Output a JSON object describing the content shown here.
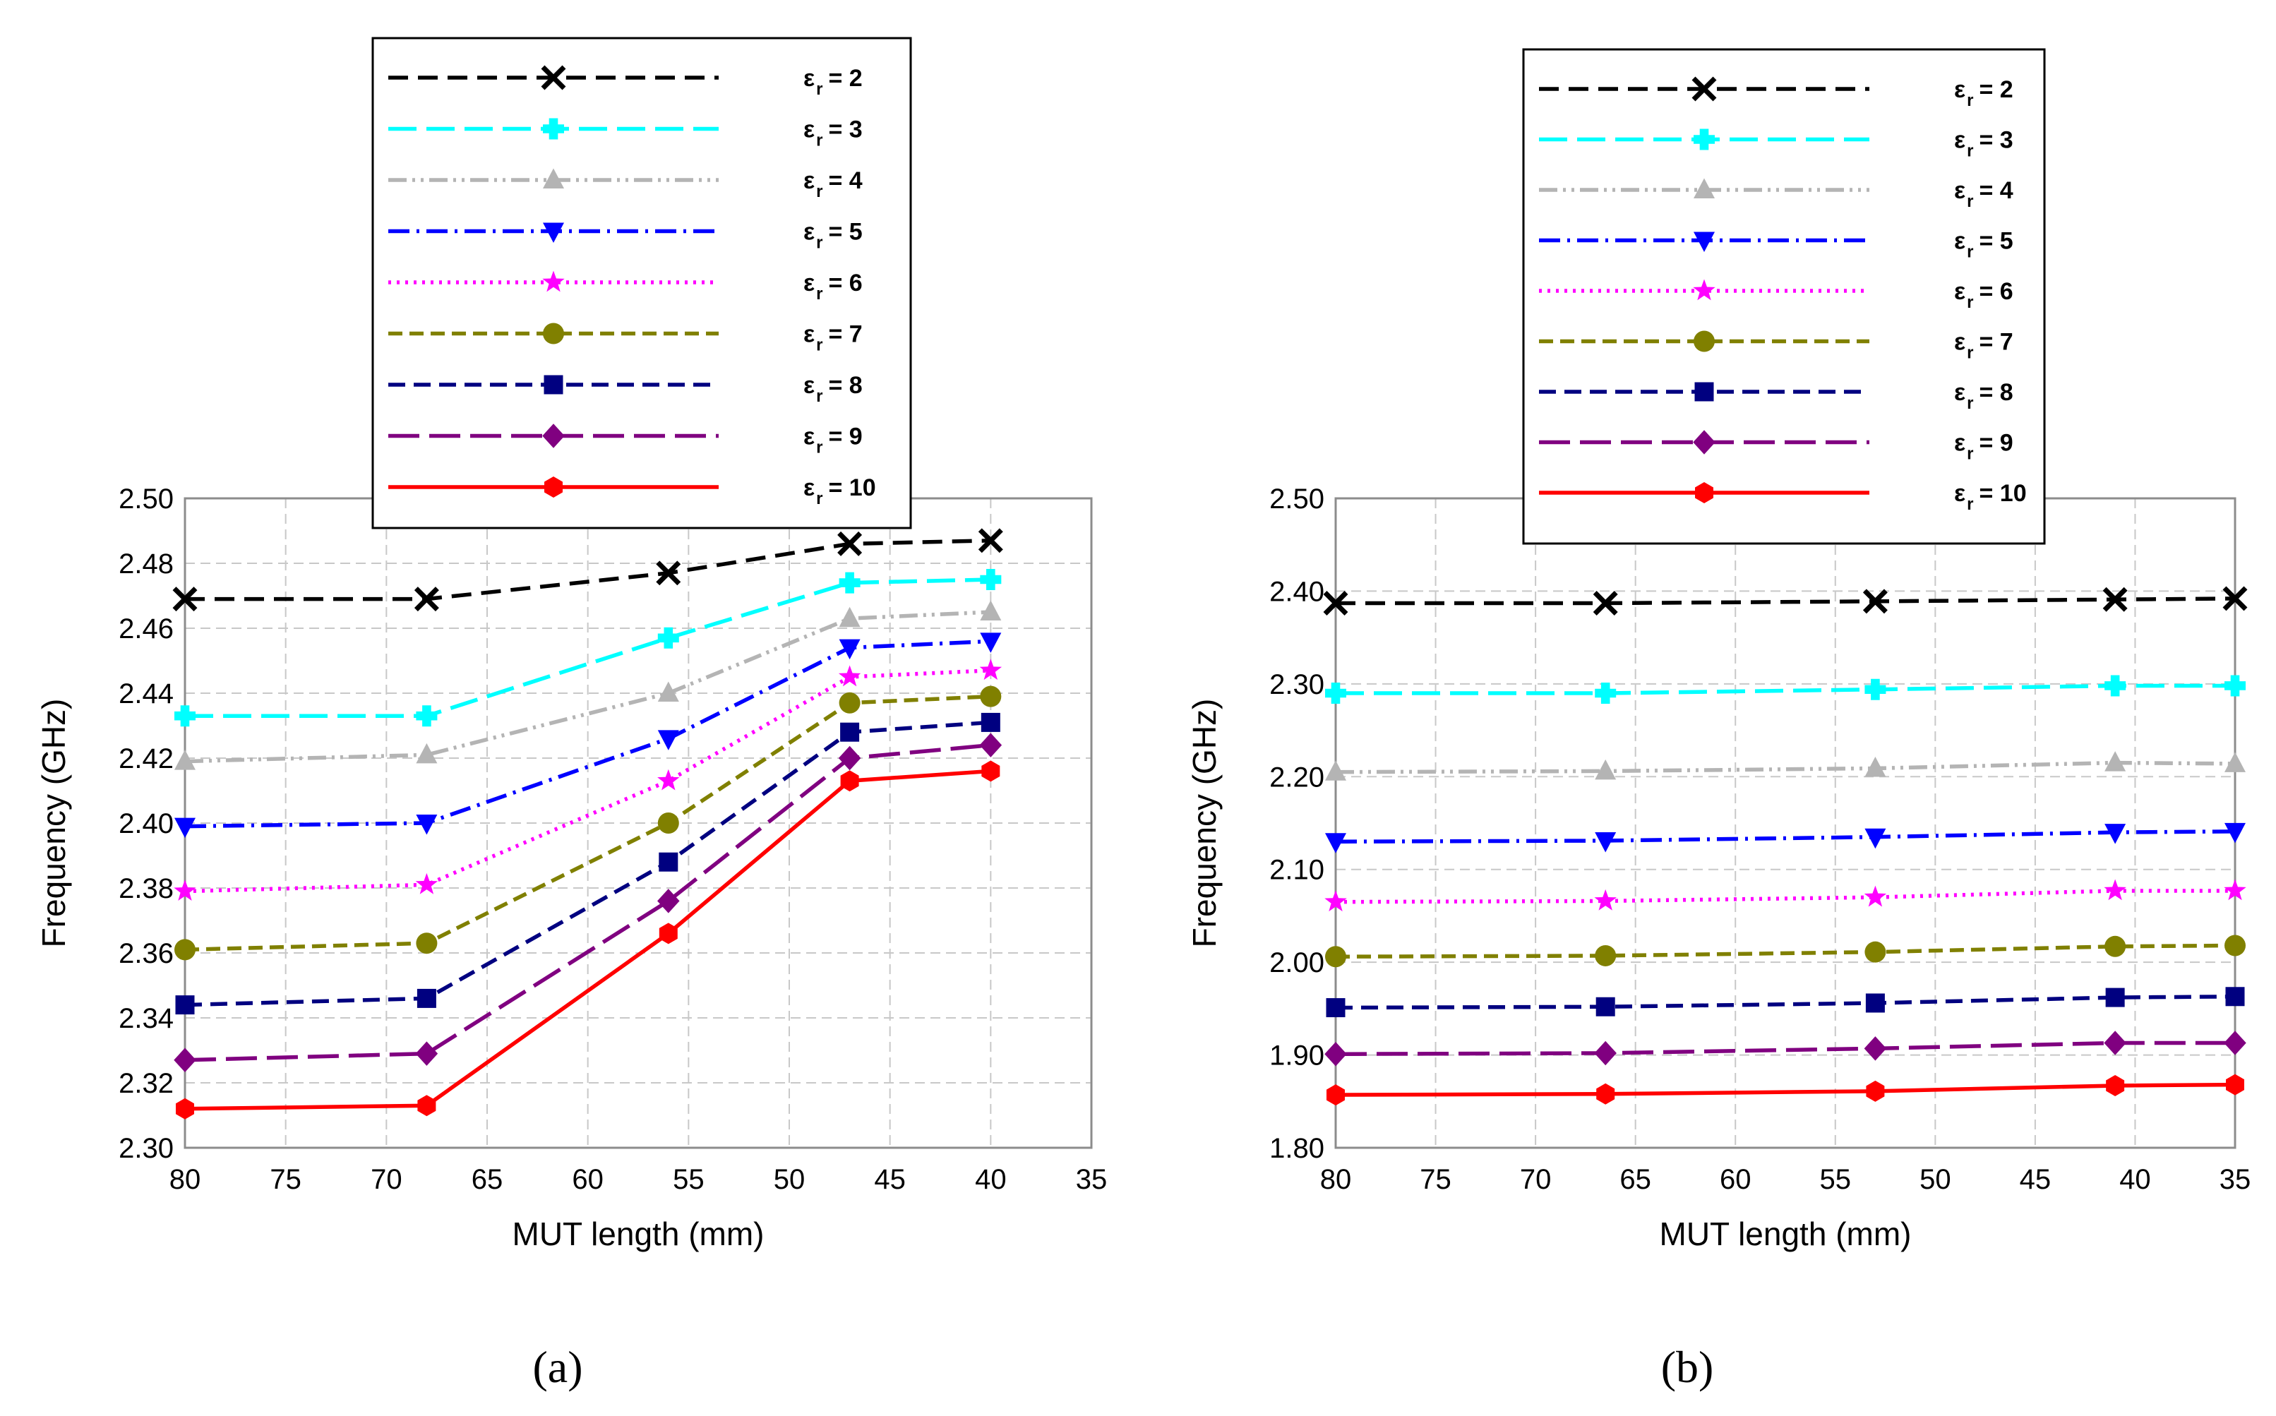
{
  "chart_data": [
    {
      "type": "line",
      "panel_label": "(a)",
      "xlabel": "MUT length (mm)",
      "ylabel": "Frequency (GHz)",
      "xlim": [
        80,
        35
      ],
      "ylim": [
        2.3,
        2.5
      ],
      "xticks": [
        "80",
        "75",
        "70",
        "65",
        "60",
        "55",
        "50",
        "45",
        "40",
        "35"
      ],
      "yticks": [
        "2.30",
        "2.32",
        "2.34",
        "2.36",
        "2.38",
        "2.40",
        "2.42",
        "2.44",
        "2.46",
        "2.48",
        "2.50"
      ],
      "grid": true,
      "legend_position": "top",
      "x": [
        80,
        68,
        56,
        47,
        40
      ],
      "series": [
        {
          "name": "ε",
          "sub": "r",
          "eq": "= 2",
          "color": "#000000",
          "marker": "x",
          "dash": "28,14",
          "values": [
            2.469,
            2.469,
            2.477,
            2.486,
            2.487
          ]
        },
        {
          "name": "ε",
          "sub": "r",
          "eq": "= 3",
          "color": "#00ffff",
          "marker": "plus",
          "dash": "40,14",
          "values": [
            2.433,
            2.433,
            2.457,
            2.474,
            2.475
          ]
        },
        {
          "name": "ε",
          "sub": "r",
          "eq": "= 4",
          "color": "#b4b4b4",
          "marker": "triangle",
          "dash": "26,8,4,8,4,8",
          "values": [
            2.419,
            2.421,
            2.44,
            2.463,
            2.465
          ]
        },
        {
          "name": "ε",
          "sub": "r",
          "eq": "= 5",
          "color": "#0000ff",
          "marker": "tri-down",
          "dash": "30,10,4,10",
          "values": [
            2.399,
            2.4,
            2.426,
            2.454,
            2.456
          ]
        },
        {
          "name": "ε",
          "sub": "r",
          "eq": "= 6",
          "color": "#ff00ff",
          "marker": "star",
          "dash": "4,8",
          "values": [
            2.379,
            2.381,
            2.413,
            2.445,
            2.447
          ]
        },
        {
          "name": "ε",
          "sub": "r",
          "eq": "= 7",
          "color": "#808000",
          "marker": "circle",
          "dash": "20,10",
          "values": [
            2.361,
            2.363,
            2.4,
            2.437,
            2.439
          ]
        },
        {
          "name": "ε",
          "sub": "r",
          "eq": "= 8",
          "color": "#000080",
          "marker": "square",
          "dash": "24,12",
          "values": [
            2.344,
            2.346,
            2.388,
            2.428,
            2.431
          ]
        },
        {
          "name": "ε",
          "sub": "r",
          "eq": "= 9",
          "color": "#800080",
          "marker": "diamond",
          "dash": "44,14",
          "values": [
            2.327,
            2.329,
            2.376,
            2.42,
            2.424
          ]
        },
        {
          "name": "ε",
          "sub": "r",
          "eq": "= 10",
          "color": "#ff0000",
          "marker": "hexagon",
          "dash": "",
          "values": [
            2.312,
            2.313,
            2.366,
            2.413,
            2.416
          ]
        }
      ]
    },
    {
      "type": "line",
      "panel_label": "(b)",
      "xlabel": "MUT length (mm)",
      "ylabel": "Frequency (GHz)",
      "xlim": [
        80,
        35
      ],
      "ylim": [
        1.8,
        2.5
      ],
      "xticks": [
        "80",
        "75",
        "70",
        "65",
        "60",
        "55",
        "50",
        "45",
        "40",
        "35"
      ],
      "yticks": [
        "1.80",
        "1.90",
        "2.00",
        "2.10",
        "2.20",
        "2.30",
        "2.40",
        "2.50"
      ],
      "grid": true,
      "legend_position": "top",
      "x": [
        80,
        66.5,
        53,
        41,
        35
      ],
      "series": [
        {
          "name": "ε",
          "sub": "r",
          "eq": "= 2",
          "color": "#000000",
          "marker": "x",
          "dash": "28,14",
          "values": [
            2.387,
            2.387,
            2.389,
            2.391,
            2.392
          ]
        },
        {
          "name": "ε",
          "sub": "r",
          "eq": "= 3",
          "color": "#00ffff",
          "marker": "plus",
          "dash": "40,14",
          "values": [
            2.29,
            2.29,
            2.294,
            2.298,
            2.298
          ]
        },
        {
          "name": "ε",
          "sub": "r",
          "eq": "= 4",
          "color": "#b4b4b4",
          "marker": "triangle",
          "dash": "26,8,4,8,4,8",
          "values": [
            2.205,
            2.206,
            2.209,
            2.215,
            2.214
          ]
        },
        {
          "name": "ε",
          "sub": "r",
          "eq": "= 5",
          "color": "#0000ff",
          "marker": "tri-down",
          "dash": "30,10,4,10",
          "values": [
            2.13,
            2.131,
            2.135,
            2.14,
            2.141
          ]
        },
        {
          "name": "ε",
          "sub": "r",
          "eq": "= 6",
          "color": "#ff00ff",
          "marker": "star",
          "dash": "4,8",
          "values": [
            2.065,
            2.066,
            2.07,
            2.077,
            2.077
          ]
        },
        {
          "name": "ε",
          "sub": "r",
          "eq": "= 7",
          "color": "#808000",
          "marker": "circle",
          "dash": "20,10",
          "values": [
            2.006,
            2.007,
            2.011,
            2.017,
            2.018
          ]
        },
        {
          "name": "ε",
          "sub": "r",
          "eq": "= 8",
          "color": "#000080",
          "marker": "square",
          "dash": "24,12",
          "values": [
            1.951,
            1.952,
            1.956,
            1.962,
            1.963
          ]
        },
        {
          "name": "ε",
          "sub": "r",
          "eq": "= 9",
          "color": "#800080",
          "marker": "diamond",
          "dash": "44,14",
          "values": [
            1.901,
            1.902,
            1.907,
            1.913,
            1.913
          ]
        },
        {
          "name": "ε",
          "sub": "r",
          "eq": "= 10",
          "color": "#ff0000",
          "marker": "hexagon",
          "dash": "",
          "values": [
            1.857,
            1.858,
            1.861,
            1.867,
            1.868
          ]
        }
      ]
    }
  ]
}
